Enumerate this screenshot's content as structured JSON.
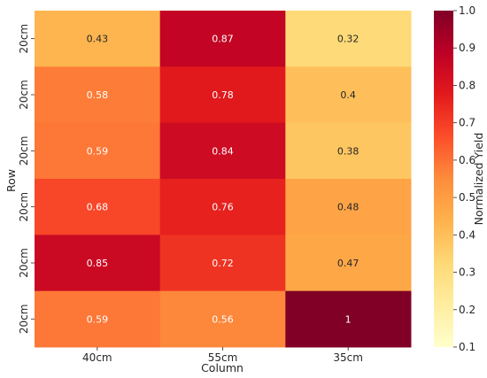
{
  "chart_data": {
    "type": "heatmap",
    "title": "",
    "xlabel": "Column",
    "ylabel": "Row",
    "x_categories": [
      "40cm",
      "55cm",
      "35cm"
    ],
    "y_categories": [
      "20cm",
      "20cm",
      "20cm",
      "20cm",
      "20cm",
      "20cm"
    ],
    "values": [
      [
        0.43,
        0.87,
        0.32
      ],
      [
        0.58,
        0.78,
        0.4
      ],
      [
        0.59,
        0.84,
        0.38
      ],
      [
        0.68,
        0.76,
        0.48
      ],
      [
        0.85,
        0.72,
        0.47
      ],
      [
        0.59,
        0.56,
        1
      ]
    ],
    "value_labels": [
      [
        "0.43",
        "0.87",
        "0.32"
      ],
      [
        "0.58",
        "0.78",
        "0.4"
      ],
      [
        "0.59",
        "0.84",
        "0.38"
      ],
      [
        "0.68",
        "0.76",
        "0.48"
      ],
      [
        "0.85",
        "0.72",
        "0.47"
      ],
      [
        "0.59",
        "0.56",
        "1"
      ]
    ],
    "colormap": "YlOrRd",
    "colorbar": {
      "label": "Normalized Yield",
      "range": [
        0.1,
        1.0
      ],
      "ticks": [
        "0.1",
        "0.2",
        "0.3",
        "0.4",
        "0.5",
        "0.6",
        "0.7",
        "0.8",
        "0.9",
        "1.0"
      ]
    }
  }
}
